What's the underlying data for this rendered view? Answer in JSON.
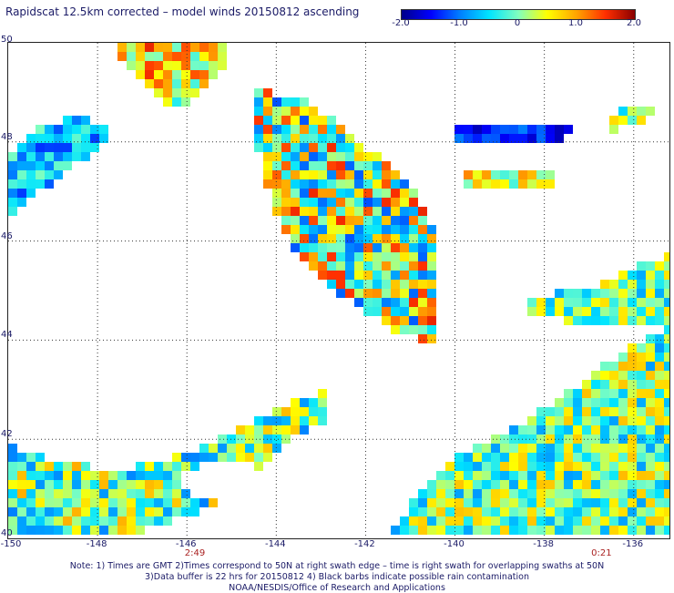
{
  "title": "Rapidscat 12.5km corrected – model winds 20150812 ascending",
  "colorbar": {
    "ticks": [
      "-2.0",
      "-1.0",
      "0",
      "1.0",
      "2.0"
    ],
    "min": -2.0,
    "max": 2.0,
    "colors": [
      "#00008b",
      "#0000ff",
      "#0080ff",
      "#00e5ff",
      "#80ffc0",
      "#ffff00",
      "#ffa500",
      "#ff3000",
      "#8b0000"
    ]
  },
  "axes": {
    "lat_labels": [
      "50",
      "48",
      "46",
      "44",
      "42",
      "40"
    ],
    "lon_labels": [
      "-150",
      "-148",
      "-146",
      "-144",
      "-142",
      "-140",
      "-138",
      "-136"
    ]
  },
  "times": [
    {
      "label": "2:49",
      "lon": -145.8
    },
    {
      "label": "0:21",
      "lon": -136.7
    }
  ],
  "notes": [
    "Note: 1) Times are GMT 2)Times correspond to 50N at right swath edge – time is right swath for overlapping swaths at 50N",
    "3)Data buffer is 22 hrs for 20150812 4) Black barbs indicate possible rain contamination",
    "NOAA/NESDIS/Office of Research and Applications"
  ]
}
